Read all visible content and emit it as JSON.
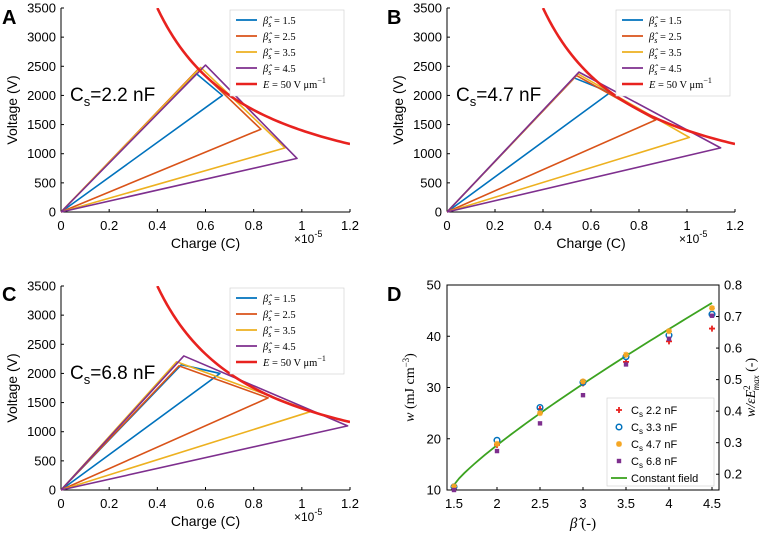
{
  "chart_data": [
    {
      "panel": "A",
      "type": "line",
      "annotation": "Cs=2.2 nF",
      "annotation_main": "C",
      "annotation_sub": "s",
      "annotation_rest": "=2.2 nF",
      "xlabel": "Charge (C)",
      "ylabel": "Voltage (V)",
      "xlim": [
        0,
        1.2
      ],
      "ylim": [
        0,
        3500
      ],
      "x_multiplier_base": "×10",
      "x_multiplier_exp": "-5",
      "xticks": [
        "0",
        "0.2",
        "0.4",
        "0.6",
        "0.8",
        "1",
        "1.2"
      ],
      "yticks": [
        "0",
        "500",
        "1000",
        "1500",
        "2000",
        "2500",
        "3000",
        "3500"
      ],
      "legend": [
        {
          "sym": "β̂",
          "sub": "s",
          "rest": " = 1.5"
        },
        {
          "sym": "β̂",
          "sub": "s",
          "rest": " = 2.5"
        },
        {
          "sym": "β̂",
          "sub": "s",
          "rest": " = 3.5"
        },
        {
          "sym": "β̂",
          "sub": "s",
          "rest": " = 4.5"
        },
        {
          "sym": "E",
          "sub": "",
          "rest": " = 50 V μm",
          "sup": "−1"
        }
      ],
      "series": [
        {
          "name": "β̂s = 1.5",
          "color": "#0072BD",
          "x": [
            0,
            0.56,
            0.67,
            0
          ],
          "y": [
            0,
            2380,
            2000,
            0
          ]
        },
        {
          "name": "β̂s = 2.5",
          "color": "#D95319",
          "x": [
            0,
            0.57,
            0.83,
            0
          ],
          "y": [
            0,
            2450,
            1420,
            0
          ]
        },
        {
          "name": "β̂s = 3.5",
          "color": "#EDB120",
          "x": [
            0,
            0.58,
            0.93,
            0
          ],
          "y": [
            0,
            2480,
            1100,
            0
          ]
        },
        {
          "name": "β̂s = 4.5",
          "color": "#7E2F8E",
          "x": [
            0,
            0.6,
            0.98,
            0
          ],
          "y": [
            0,
            2520,
            920,
            0
          ]
        },
        {
          "name": "E = 50 V μm−1",
          "color": "#E8221F",
          "curve": {
            "k": 1400,
            "x_from": 0.4,
            "x_to": 1.2
          }
        }
      ]
    },
    {
      "panel": "B",
      "type": "line",
      "annotation": "Cs=4.7 nF",
      "annotation_main": "C",
      "annotation_sub": "s",
      "annotation_rest": "=4.7 nF",
      "xlabel": "Charge (C)",
      "ylabel": "Voltage (V)",
      "xlim": [
        0,
        1.2
      ],
      "ylim": [
        0,
        3500
      ],
      "x_multiplier_base": "×10",
      "x_multiplier_exp": "-5",
      "xticks": [
        "0",
        "0.2",
        "0.4",
        "0.6",
        "0.8",
        "1",
        "1.2"
      ],
      "yticks": [
        "0",
        "500",
        "1000",
        "1500",
        "2000",
        "2500",
        "3000",
        "3500"
      ],
      "legend": [
        {
          "sym": "β̂",
          "sub": "s",
          "rest": " = 1.5"
        },
        {
          "sym": "β̂",
          "sub": "s",
          "rest": " = 2.5"
        },
        {
          "sym": "β̂",
          "sub": "s",
          "rest": " = 3.5"
        },
        {
          "sym": "β̂",
          "sub": "s",
          "rest": " = 4.5"
        },
        {
          "sym": "E",
          "sub": "",
          "rest": " = 50 V μm",
          "sup": "−1"
        }
      ],
      "series": [
        {
          "name": "β̂s = 1.5",
          "color": "#0072BD",
          "x": [
            0,
            0.53,
            0.68,
            0
          ],
          "y": [
            0,
            2300,
            2050,
            0
          ]
        },
        {
          "name": "β̂s = 2.5",
          "color": "#D95319",
          "x": [
            0,
            0.54,
            0.87,
            0
          ],
          "y": [
            0,
            2340,
            1580,
            0
          ]
        },
        {
          "name": "β̂s = 3.5",
          "color": "#EDB120",
          "x": [
            0,
            0.545,
            1.01,
            0
          ],
          "y": [
            0,
            2370,
            1280,
            0
          ]
        },
        {
          "name": "β̂s = 4.5",
          "color": "#7E2F8E",
          "x": [
            0,
            0.55,
            1.14,
            0
          ],
          "y": [
            0,
            2400,
            1100,
            0
          ]
        },
        {
          "name": "E = 50 V μm−1",
          "color": "#E8221F",
          "curve": {
            "k": 1400,
            "x_from": 0.4,
            "x_to": 1.2
          }
        }
      ]
    },
    {
      "panel": "C",
      "type": "line",
      "annotation": "Cs=6.8 nF",
      "annotation_main": "C",
      "annotation_sub": "s",
      "annotation_rest": "=6.8 nF",
      "xlabel": "Charge (C)",
      "ylabel": "Voltage (V)",
      "xlim": [
        0,
        1.2
      ],
      "ylim": [
        0,
        3500
      ],
      "x_multiplier_base": "×10",
      "x_multiplier_exp": "-5",
      "xticks": [
        "0",
        "0.2",
        "0.4",
        "0.6",
        "0.8",
        "1",
        "1.2"
      ],
      "yticks": [
        "0",
        "500",
        "1000",
        "1500",
        "2000",
        "2500",
        "3000",
        "3500"
      ],
      "legend": [
        {
          "sym": "β̂",
          "sub": "s",
          "rest": " = 1.5"
        },
        {
          "sym": "β̂",
          "sub": "s",
          "rest": " = 2.5"
        },
        {
          "sym": "β̂",
          "sub": "s",
          "rest": " = 3.5"
        },
        {
          "sym": "β̂",
          "sub": "s",
          "rest": " = 4.5"
        },
        {
          "sym": "E",
          "sub": "",
          "rest": " = 50 V μm",
          "sup": "−1"
        }
      ],
      "series": [
        {
          "name": "β̂s = 1.5",
          "color": "#0072BD",
          "x": [
            0,
            0.5,
            0.66,
            0
          ],
          "y": [
            0,
            2150,
            2000,
            0
          ]
        },
        {
          "name": "β̂s = 2.5",
          "color": "#D95319",
          "x": [
            0,
            0.49,
            0.86,
            0
          ],
          "y": [
            0,
            2130,
            1580,
            0
          ]
        },
        {
          "name": "β̂s = 3.5",
          "color": "#EDB120",
          "x": [
            0,
            0.48,
            1.04,
            0
          ],
          "y": [
            0,
            2200,
            1350,
            0
          ]
        },
        {
          "name": "β̂s = 4.5",
          "color": "#7E2F8E",
          "x": [
            0,
            0.51,
            1.19,
            0
          ],
          "y": [
            0,
            2300,
            1100,
            0
          ]
        },
        {
          "name": "E = 50 V μm−1",
          "color": "#E8221F",
          "curve": {
            "k": 1400,
            "x_from": 0.4,
            "x_to": 1.2
          }
        }
      ]
    },
    {
      "panel": "D",
      "type": "scatter",
      "xlabel_sym": "β̂",
      "xlabel_rest": " (-)",
      "ylabel_left_sym": "w",
      "ylabel_left_unit": "(mJ cm",
      "ylabel_left_unit_sup": "−3",
      "ylabel_right_sym": "w/εE",
      "ylabel_right_sup": "2",
      "ylabel_right_sub": "max",
      "ylabel_right_rest": " (-)",
      "xlim": [
        1.5,
        4.5
      ],
      "ylim": [
        10,
        50
      ],
      "y2lim": [
        0.15,
        0.8
      ],
      "xticks": [
        "1.5",
        "2",
        "2.5",
        "3",
        "3.5",
        "4",
        "4.5"
      ],
      "yticks": [
        "10",
        "20",
        "30",
        "40",
        "50"
      ],
      "y2ticks": [
        "0.2",
        "0.3",
        "0.4",
        "0.5",
        "0.6",
        "0.7",
        "0.8"
      ],
      "x": [
        1.5,
        2,
        2.5,
        3,
        3.5,
        4,
        4.5
      ],
      "series": [
        {
          "label_main": "C",
          "label_sub": "s",
          "label_rest": " 2.2 nF",
          "color": "#E8221F",
          "marker": "plus",
          "values": [
            10.3,
            18.8,
            25.8,
            30.8,
            35.0,
            39.0,
            41.5
          ]
        },
        {
          "label_main": "C",
          "label_sub": "s",
          "label_rest": " 3.3 nF",
          "color": "#0072BD",
          "marker": "circle",
          "values": [
            10.6,
            19.7,
            26.1,
            31.0,
            36.0,
            40.2,
            44.3
          ]
        },
        {
          "label_main": "C",
          "label_sub": "s",
          "label_rest": " 4.7 nF",
          "color": "#F5A623",
          "marker": "star",
          "values": [
            10.7,
            19.0,
            25.0,
            31.2,
            36.4,
            41.0,
            45.5
          ]
        },
        {
          "label_main": "C",
          "label_sub": "s",
          "label_rest": " 6.8 nF",
          "color": "#7E2F8E",
          "marker": "square",
          "values": [
            10.0,
            17.6,
            23.0,
            28.5,
            34.5,
            39.5,
            44.0
          ]
        }
      ],
      "line": {
        "label": "Constant field",
        "color": "#3CA320",
        "x_from": 1.5,
        "x_to": 4.5,
        "y_from": 11,
        "y_to": 46.5,
        "exponent": 0.85
      }
    }
  ]
}
